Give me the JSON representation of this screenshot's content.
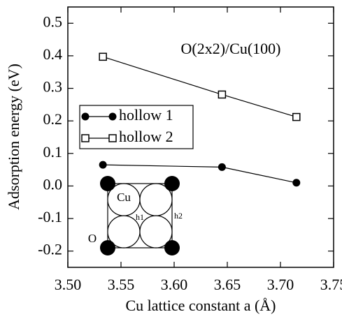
{
  "chart_data": {
    "type": "line",
    "annotation": "O(2x2)/Cu(100)",
    "xlabel": "Cu lattice constant a (Å)",
    "ylabel": "Adsorption energy (eV)",
    "xlim": [
      3.5,
      3.75
    ],
    "xticks": [
      {
        "value": 3.5,
        "label": "3.50"
      },
      3.55,
      {
        "value": 3.6,
        "label": "3.60"
      },
      3.65,
      {
        "value": 3.7,
        "label": "3.70"
      },
      3.75
    ],
    "ylim": [
      -0.25,
      0.55
    ],
    "yticks": [
      {
        "value": -0.2,
        "label": "-0.2"
      },
      {
        "value": -0.1,
        "label": "-0.1"
      },
      {
        "value": 0,
        "label": "0.0"
      },
      0.1,
      0.2,
      0.3,
      0.4,
      0.5
    ],
    "series": [
      {
        "name": "hollow 1",
        "color": "#000000",
        "marker": "filled-circle",
        "x": [
          3.533,
          3.645,
          3.715
        ],
        "values": [
          0.065,
          0.058,
          0.01
        ]
      },
      {
        "name": "hollow 2",
        "color": "#000000",
        "marker": "open-square",
        "x": [
          3.533,
          3.645,
          3.715
        ],
        "values": [
          0.397,
          0.281,
          0.212
        ]
      }
    ],
    "inset": {
      "cu_label": "Cu",
      "o_label": "O",
      "h1_label": "h1",
      "h2_label": "h2"
    }
  }
}
